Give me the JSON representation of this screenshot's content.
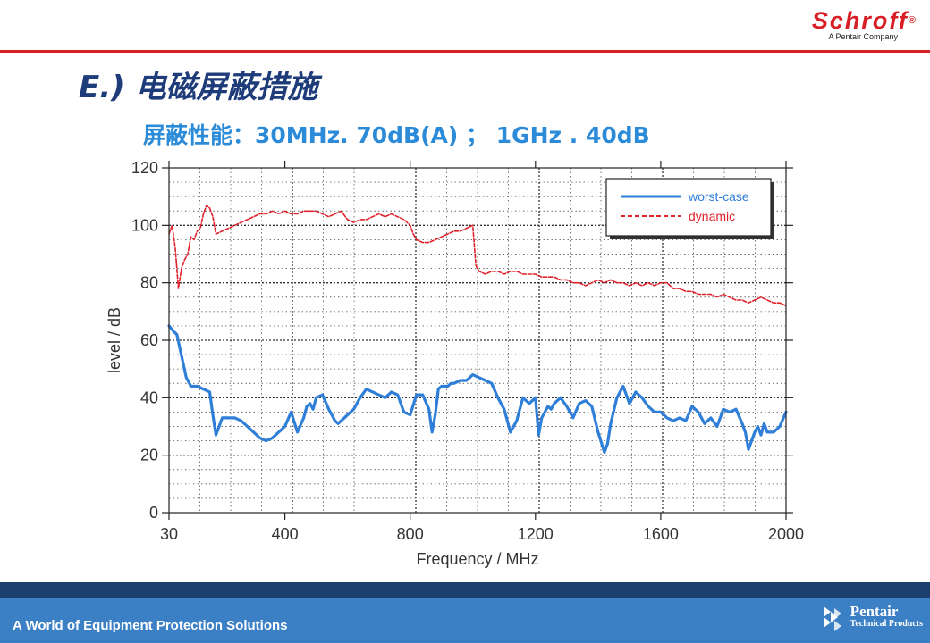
{
  "header": {
    "logo": "Schroff",
    "logo_mark": "®",
    "logo_tagline": "A Pentair Company",
    "title": "E.) 电磁屏蔽措施",
    "subtitle": "屏蔽性能：30MHz. 70dB(A) ；  1GHz . 40dB"
  },
  "colors": {
    "accent_red": "#d81f26",
    "title_navy": "#1f3c7a",
    "subtitle_blue": "#2b8bd8",
    "worst_case": "#2f7fd8",
    "dynamic": "#e0202a",
    "footer_dark": "#1c3f6d",
    "footer_blue": "#3b7fc4"
  },
  "chart_data": {
    "type": "line",
    "xlabel": "Frequency / MHz",
    "ylabel": "level / dB",
    "xlim": [
      30,
      2000
    ],
    "ylim": [
      0,
      120
    ],
    "x_ticks": [
      30,
      400,
      800,
      1200,
      1600,
      2000
    ],
    "y_ticks": [
      0,
      20,
      40,
      60,
      80,
      100,
      120
    ],
    "grid": true,
    "legend_position": "top-right",
    "series": [
      {
        "name": "worst-case",
        "style": "solid",
        "color": "#2f7fd8",
        "x": [
          30,
          45,
          55,
          65,
          75,
          85,
          100,
          120,
          140,
          160,
          170,
          180,
          190,
          200,
          220,
          240,
          260,
          280,
          300,
          320,
          340,
          360,
          380,
          400,
          420,
          440,
          460,
          470,
          480,
          490,
          500,
          520,
          540,
          560,
          570,
          580,
          590,
          600,
          620,
          640,
          660,
          680,
          700,
          720,
          740,
          760,
          780,
          800,
          820,
          840,
          860,
          870,
          880,
          890,
          900,
          910,
          920,
          930,
          940,
          960,
          980,
          1000,
          1020,
          1040,
          1060,
          1080,
          1100,
          1120,
          1140,
          1160,
          1180,
          1200,
          1210,
          1220,
          1230,
          1240,
          1250,
          1260,
          1280,
          1300,
          1320,
          1340,
          1360,
          1380,
          1400,
          1420,
          1430,
          1440,
          1460,
          1480,
          1500,
          1520,
          1540,
          1560,
          1580,
          1600,
          1620,
          1640,
          1660,
          1680,
          1700,
          1720,
          1740,
          1760,
          1780,
          1800,
          1820,
          1840,
          1860,
          1870,
          1880,
          1900,
          1910,
          1920,
          1930,
          1940,
          1960,
          1980,
          2000
        ],
        "y": [
          65,
          63,
          62,
          57,
          52,
          47,
          44,
          44,
          43,
          42,
          34,
          27,
          30,
          33,
          33,
          33,
          32,
          30,
          28,
          26,
          25,
          26,
          28,
          30,
          35,
          28,
          33,
          37,
          38,
          36,
          40,
          41,
          36,
          32,
          31,
          32,
          33,
          34,
          36,
          40,
          43,
          42,
          41,
          40,
          42,
          41,
          35,
          34,
          41,
          41,
          36,
          28,
          34,
          43,
          44,
          44,
          44,
          45,
          45,
          46,
          46,
          48,
          47,
          46,
          45,
          40,
          36,
          28,
          32,
          40,
          38,
          40,
          27,
          33,
          35,
          37,
          36,
          38,
          40,
          37,
          33,
          38,
          39,
          37,
          28,
          21,
          24,
          31,
          40,
          44,
          38,
          42,
          40,
          37,
          35,
          35,
          33,
          32,
          33,
          32,
          37,
          35,
          31,
          33,
          30,
          36,
          35,
          36,
          31,
          28,
          22,
          28,
          30,
          27,
          31,
          28,
          28,
          30,
          35
        ]
      },
      {
        "name": "dynamic",
        "style": "dashed",
        "color": "#e0202a",
        "x": [
          30,
          40,
          50,
          60,
          70,
          80,
          90,
          100,
          110,
          120,
          130,
          140,
          150,
          160,
          170,
          180,
          200,
          220,
          240,
          260,
          280,
          300,
          320,
          340,
          360,
          380,
          400,
          420,
          440,
          460,
          480,
          500,
          520,
          540,
          560,
          580,
          600,
          620,
          640,
          660,
          680,
          700,
          720,
          740,
          760,
          780,
          800,
          810,
          820,
          840,
          860,
          880,
          900,
          920,
          940,
          960,
          980,
          1000,
          1010,
          1020,
          1040,
          1060,
          1080,
          1100,
          1120,
          1140,
          1160,
          1180,
          1200,
          1220,
          1240,
          1260,
          1280,
          1300,
          1320,
          1340,
          1360,
          1380,
          1400,
          1420,
          1440,
          1460,
          1480,
          1500,
          1520,
          1540,
          1560,
          1580,
          1600,
          1620,
          1640,
          1660,
          1680,
          1700,
          1720,
          1740,
          1760,
          1780,
          1800,
          1820,
          1840,
          1860,
          1880,
          1900,
          1920,
          1940,
          1960,
          1980,
          2000
        ],
        "y": [
          97,
          100,
          92,
          78,
          85,
          88,
          90,
          96,
          95,
          98,
          99,
          104,
          107,
          106,
          103,
          97,
          98,
          99,
          100,
          101,
          102,
          103,
          104,
          104,
          105,
          104,
          105,
          104,
          104,
          105,
          105,
          105,
          104,
          103,
          104,
          105,
          102,
          101,
          102,
          102,
          103,
          104,
          103,
          104,
          103,
          102,
          100,
          97,
          95,
          94,
          94,
          95,
          96,
          97,
          98,
          98,
          99,
          100,
          86,
          84,
          83,
          84,
          84,
          83,
          84,
          84,
          83,
          83,
          83,
          82,
          82,
          82,
          81,
          81,
          80,
          80,
          79,
          80,
          81,
          80,
          81,
          80,
          80,
          79,
          80,
          79,
          80,
          79,
          80,
          80,
          78,
          78,
          77,
          77,
          76,
          76,
          76,
          75,
          76,
          75,
          74,
          74,
          73,
          74,
          75,
          74,
          73,
          73,
          72
        ]
      }
    ]
  },
  "footer": {
    "tagline": "A World of Equipment Protection Solutions",
    "brand": "Pentair",
    "brand_sub": "Technical Products"
  }
}
